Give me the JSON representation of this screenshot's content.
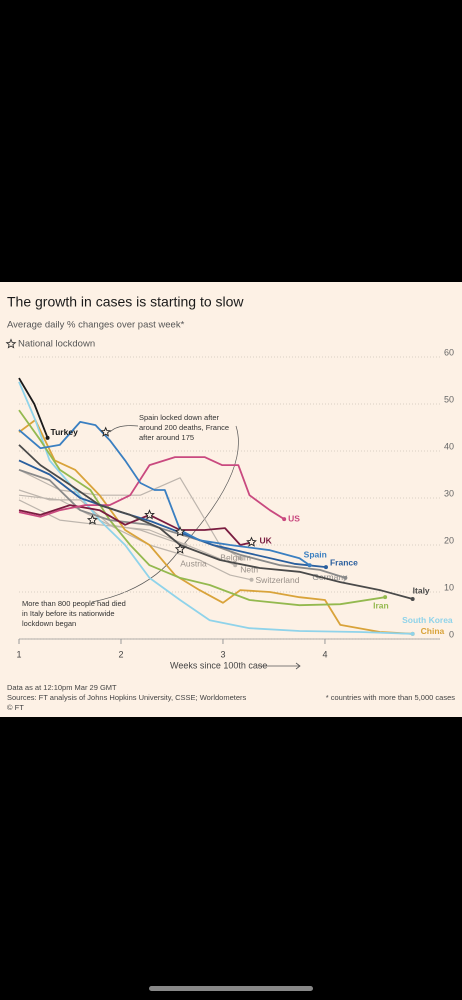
{
  "chart_data": {
    "type": "line",
    "title": "The growth in cases is starting to slow",
    "subtitle": "Average daily % changes over past week*",
    "x_label": "Weeks since 100th case",
    "xlim": [
      1,
      5.03
    ],
    "xticks": [
      1,
      2,
      3,
      4
    ],
    "ylim": [
      0,
      60
    ],
    "yticks": [
      0,
      10,
      20,
      30,
      40,
      50,
      60
    ],
    "grid": true,
    "series": [
      {
        "name": "Turkey",
        "color": "#1a1a1a",
        "x": [
          1,
          1.15,
          1.28
        ],
        "values": [
          55.5,
          50,
          42.8
        ]
      },
      {
        "name": "Italy",
        "color": "#4a4a4a",
        "x": [
          1,
          1.21,
          1.5,
          1.79,
          2.09,
          2.38,
          2.58,
          2.97,
          3.36,
          3.75,
          4.15,
          4.54,
          4.86
        ],
        "values": [
          41.3,
          37,
          32.8,
          28.5,
          26.4,
          23.6,
          20,
          16.8,
          15.1,
          14.3,
          12.1,
          10.4,
          8.5
        ]
      },
      {
        "name": "Spain",
        "color": "#3a7fc1",
        "x": [
          1,
          1.21,
          1.4,
          1.6,
          1.75,
          1.89,
          2.04,
          2.19,
          2.33,
          2.43,
          2.58,
          2.77,
          3.07,
          3.46,
          3.75,
          3.85
        ],
        "values": [
          44.5,
          40.6,
          41.3,
          46.2,
          45.5,
          42.3,
          38,
          33.2,
          31.7,
          31.7,
          23.2,
          21,
          20,
          18.9,
          17.2,
          15.7
        ]
      },
      {
        "name": "France",
        "color": "#2a5f9e",
        "x": [
          1,
          1.3,
          1.6,
          2,
          2.3,
          2.6,
          2.9,
          3.3,
          3.7,
          4.01
        ],
        "values": [
          38,
          35,
          30,
          27,
          25,
          22.5,
          20,
          18,
          16,
          15.3
        ]
      },
      {
        "name": "US",
        "color": "#c9497f",
        "x": [
          1,
          1.21,
          1.4,
          1.65,
          1.89,
          2.09,
          2.28,
          2.53,
          2.82,
          2.99,
          3.15,
          3.26,
          3.46,
          3.6
        ],
        "values": [
          27,
          26,
          27.4,
          28.5,
          28.5,
          30.6,
          37,
          38.7,
          38.7,
          37,
          37,
          30.6,
          27.4,
          25.5
        ]
      },
      {
        "name": "UK",
        "color": "#7a1c40",
        "x": [
          1,
          1.21,
          1.5,
          1.79,
          2.04,
          2.28,
          2.58,
          2.82,
          3.02,
          3.17,
          3.29
        ],
        "values": [
          27.4,
          26.4,
          28.5,
          27.4,
          24.3,
          26.4,
          23.2,
          23.2,
          23.6,
          20,
          20.6
        ]
      },
      {
        "name": "Germany",
        "color": "#8a8a8a",
        "x": [
          1,
          1.3,
          1.6,
          1.89,
          2.28,
          2.77,
          3.17,
          3.56,
          3.95,
          4.2
        ],
        "values": [
          36,
          33.8,
          27.4,
          25.3,
          24.3,
          21,
          17.9,
          15.7,
          14.7,
          13
        ]
      },
      {
        "name": "Iran",
        "color": "#94b94f",
        "x": [
          1,
          1.21,
          1.4,
          1.7,
          1.89,
          2.09,
          2.28,
          2.58,
          2.87,
          3.26,
          3.75,
          4.15,
          4.59
        ],
        "values": [
          48.7,
          42.3,
          36,
          31.7,
          25.3,
          20,
          15.7,
          13,
          11.5,
          8.3,
          7.2,
          7.4,
          8.9
        ]
      },
      {
        "name": "South Korea",
        "color": "#8fd3ea",
        "x": [
          1,
          1.16,
          1.3,
          1.55,
          1.79,
          2.04,
          2.28,
          2.58,
          2.87,
          3.26,
          3.75,
          4.34,
          4.86
        ],
        "values": [
          54.7,
          46.6,
          38,
          31.7,
          25.3,
          20,
          13,
          8.3,
          4,
          2.3,
          1.7,
          1.5,
          1.1
        ]
      },
      {
        "name": "China",
        "color": "#d9a33a",
        "x": [
          1,
          1.16,
          1.35,
          1.55,
          1.79,
          2.04,
          2.28,
          2.53,
          2.77,
          3,
          3.17,
          3.46,
          3.75,
          4,
          4.15,
          4.54,
          4.86
        ],
        "values": [
          44,
          46.6,
          38,
          36,
          30.6,
          23.2,
          20,
          13.6,
          10.4,
          7.7,
          10.4,
          10,
          8.9,
          8.3,
          3,
          1.5,
          1.1
        ]
      },
      {
        "name": "Austria",
        "color": "#bdb5ad",
        "x": [
          1,
          1.3,
          1.6,
          1.89,
          2.19,
          2.48,
          2.63
        ],
        "values": [
          31.7,
          29.6,
          29.6,
          24.3,
          23.2,
          21,
          20
        ]
      },
      {
        "name": "Belgium",
        "color": "#bdb5ad",
        "x": [
          1,
          1.4,
          1.79,
          2.19,
          2.58,
          2.77,
          2.97,
          3.17
        ],
        "values": [
          36,
          31.7,
          30.6,
          30.6,
          34.3,
          27.4,
          20,
          17.2
        ]
      },
      {
        "name": "Neth",
        "color": "#bdb5ad",
        "x": [
          1,
          1.4,
          1.79,
          2.28,
          2.77,
          3.12
        ],
        "values": [
          29.6,
          25.3,
          24.3,
          23.2,
          18.9,
          15.7
        ]
      },
      {
        "name": "Switzerland",
        "color": "#bdb5ad",
        "x": [
          1,
          1.4,
          1.79,
          2.28,
          2.77,
          3.07,
          3.28
        ],
        "values": [
          30.6,
          29.6,
          25.3,
          20,
          16.8,
          13.6,
          12.6
        ]
      }
    ],
    "lockdowns": {
      "name": "National lockdown",
      "x": [
        1.85,
        1.72,
        2.28,
        2.58,
        2.58,
        3.28
      ],
      "values": [
        44,
        25.3,
        26.4,
        22.8,
        19.1,
        20.6
      ]
    },
    "annotations": [
      {
        "text": [
          "Spain locked down after",
          "around 200 deaths, France",
          "after around 175"
        ]
      },
      {
        "text": [
          "More than 800 people had died",
          "in Italy before its nationwide",
          "lockdown began"
        ]
      }
    ],
    "notes": [
      "Data as at 12:10pm Mar 29 GMT",
      "Sources: FT analysis of Johns Hopkins University, CSSE; Worldometers",
      "© FT"
    ],
    "footnote": "* countries with more than 5,000 cases"
  }
}
